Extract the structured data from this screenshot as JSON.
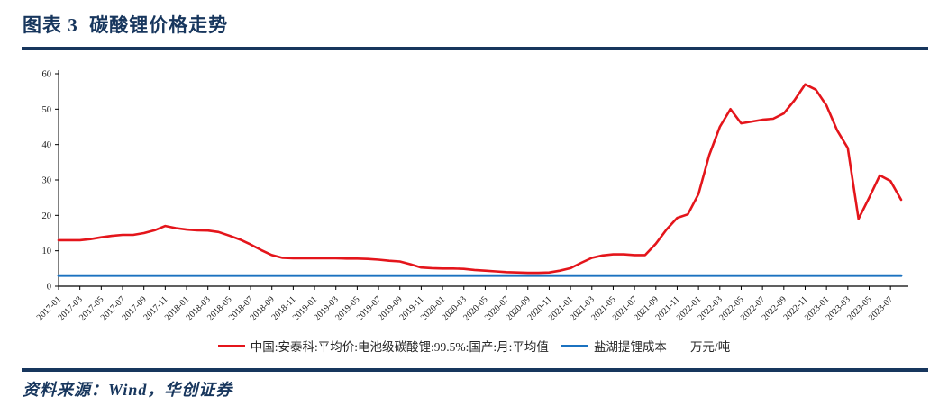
{
  "page": {
    "title": "图表 3  碳酸锂价格走势",
    "source": "资料来源：Wind，华创证券",
    "accent_color": "#17365D"
  },
  "chart_data": {
    "type": "line",
    "title": "碳酸锂价格走势",
    "unit_label": "万元/吨",
    "grid": false,
    "legend_position": "bottom",
    "ylim": [
      0,
      60
    ],
    "y_ticks": [
      0,
      10,
      20,
      30,
      40,
      50,
      60
    ],
    "x_monthly_range": [
      "2017-01",
      "2023-08"
    ],
    "x_tick_labels": [
      "2017-01",
      "2017-03",
      "2017-05",
      "2017-07",
      "2017-09",
      "2017-11",
      "2018-01",
      "2018-03",
      "2018-05",
      "2018-07",
      "2018-09",
      "2018-11",
      "2019-01",
      "2019-03",
      "2019-05",
      "2019-07",
      "2019-09",
      "2019-11",
      "2020-01",
      "2020-03",
      "2020-05",
      "2020-07",
      "2020-09",
      "2020-11",
      "2021-01",
      "2021-03",
      "2021-05",
      "2021-07",
      "2021-09",
      "2021-11",
      "2022-01",
      "2022-03",
      "2022-05",
      "2022-07",
      "2022-09",
      "2022-11",
      "2023-01",
      "2023-03",
      "2023-05",
      "2023-07"
    ],
    "series": [
      {
        "name": "中国:安泰科:平均价:电池级碳酸锂:99.5%:国产:月:平均值",
        "color": "#E4151B",
        "values": [
          13.0,
          13.0,
          13.0,
          13.3,
          13.8,
          14.2,
          14.5,
          14.5,
          15.0,
          15.8,
          17.0,
          16.4,
          16.0,
          15.8,
          15.7,
          15.3,
          14.3,
          13.2,
          11.8,
          10.2,
          8.8,
          8.0,
          7.9,
          7.9,
          7.9,
          7.9,
          7.9,
          7.8,
          7.8,
          7.7,
          7.5,
          7.2,
          7.0,
          6.2,
          5.3,
          5.1,
          5.0,
          5.0,
          4.9,
          4.6,
          4.4,
          4.2,
          4.0,
          3.9,
          3.8,
          3.8,
          3.9,
          4.4,
          5.1,
          6.6,
          8.0,
          8.7,
          9.0,
          9.0,
          8.8,
          8.8,
          12.0,
          16.0,
          19.3,
          20.3,
          26.0,
          37.0,
          45.0,
          50.0,
          46.0,
          46.5,
          47.0,
          47.3,
          48.8,
          52.5,
          57.0,
          55.5,
          51.0,
          44.0,
          39.0,
          19.0,
          25.0,
          31.3,
          29.7,
          24.4
        ]
      },
      {
        "name": "盐湖提锂成本",
        "color": "#1B72C0",
        "constant": 3
      }
    ]
  }
}
